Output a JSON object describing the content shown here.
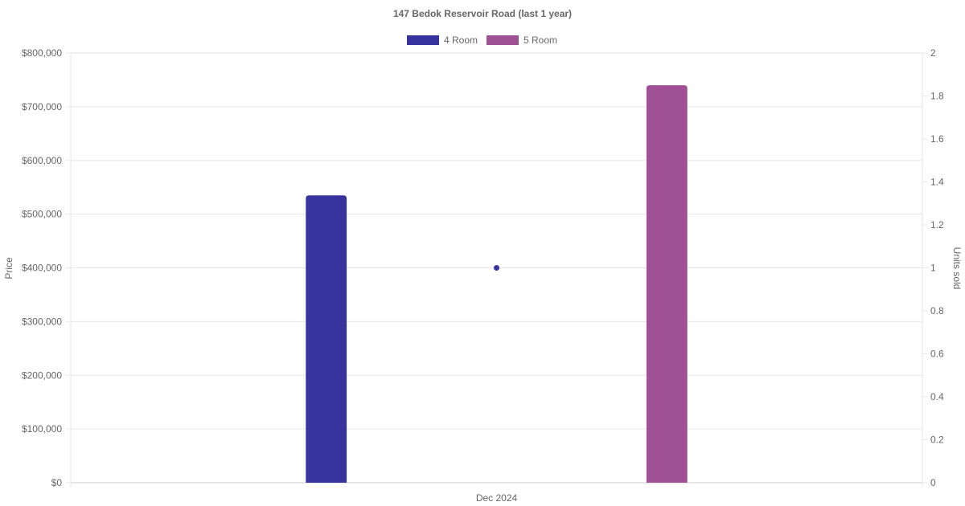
{
  "chart_data": {
    "type": "bar",
    "title": "147 Bedok Reservoir Road (last 1 year)",
    "categories": [
      "Dec 2024"
    ],
    "series": [
      {
        "name": "4 Room",
        "type": "bar",
        "axis": "left",
        "color": "#3734a0",
        "values": [
          535000
        ]
      },
      {
        "name": "5 Room",
        "type": "bar",
        "axis": "left",
        "color": "#a05196",
        "values": [
          740000
        ]
      },
      {
        "type": "scatter",
        "axis": "right",
        "color": "#3734a0",
        "values": [
          1
        ]
      }
    ],
    "y_left": {
      "label": "Price",
      "range": [
        0,
        800000
      ],
      "ticks": [
        0,
        100000,
        200000,
        300000,
        400000,
        500000,
        600000,
        700000,
        800000
      ],
      "tick_labels": [
        "$0",
        "$100,000",
        "$200,000",
        "$300,000",
        "$400,000",
        "$500,000",
        "$600,000",
        "$700,000",
        "$800,000"
      ]
    },
    "y_right": {
      "label": "Units sold",
      "range": [
        0,
        2
      ],
      "ticks": [
        0,
        0.2,
        0.4,
        0.6,
        0.8,
        1,
        1.2,
        1.4,
        1.6,
        1.8,
        2
      ],
      "tick_labels": [
        "0",
        "0.2",
        "0.4",
        "0.6",
        "0.8",
        "1",
        "1.2",
        "1.4",
        "1.6",
        "1.8",
        "2"
      ]
    },
    "legend": [
      {
        "label": "4 Room",
        "color": "#3734a0"
      },
      {
        "label": "5 Room",
        "color": "#a05196"
      }
    ],
    "legend_position": "top",
    "grid": true
  }
}
